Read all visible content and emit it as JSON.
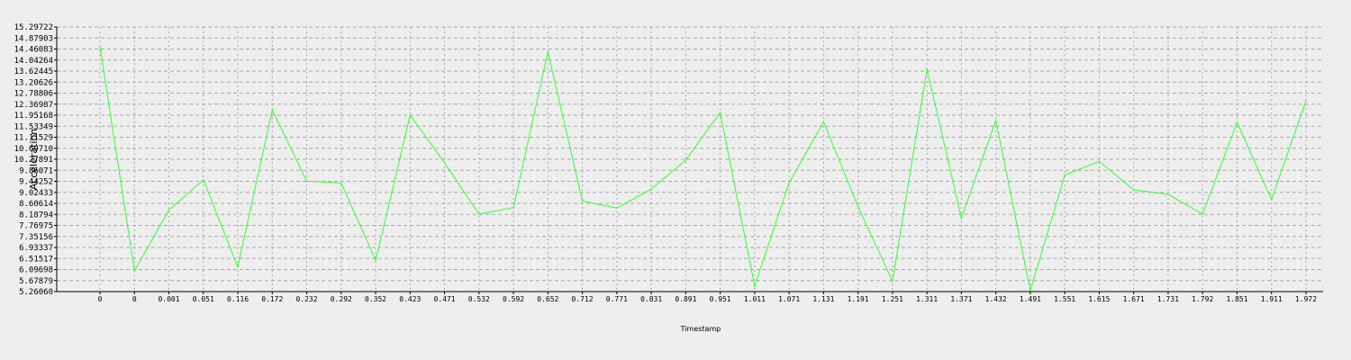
{
  "chart_data": {
    "type": "line",
    "title": "",
    "xlabel": "Timestamp",
    "ylabel": "Acceleration",
    "grid": true,
    "line_color": "#33ff33",
    "background_color": "#eeeeee",
    "grid_color": "#a8a8a8",
    "ylim": [
      5.2606,
      15.29722
    ],
    "y_ticks": [
      "5.26060",
      "5.67879",
      "6.09698",
      "6.51517",
      "6.93337",
      "7.35156",
      "7.76975",
      "8.18794",
      "8.60614",
      "9.02433",
      "9.44252",
      "9.86071",
      "10.27891",
      "10.69710",
      "11.11529",
      "11.53349",
      "11.95168",
      "12.36987",
      "12.78806",
      "13.20626",
      "13.62445",
      "14.04264",
      "14.46083",
      "14.87903",
      "15.29722"
    ],
    "categories": [
      "0",
      "0",
      "0.001",
      "0.051",
      "0.116",
      "0.172",
      "0.232",
      "0.292",
      "0.352",
      "0.423",
      "0.471",
      "0.532",
      "0.592",
      "0.652",
      "0.712",
      "0.771",
      "0.831",
      "0.891",
      "0.951",
      "1.011",
      "1.071",
      "1.131",
      "1.191",
      "1.251",
      "1.311",
      "1.371",
      "1.432",
      "1.491",
      "1.551",
      "1.615",
      "1.671",
      "1.731",
      "1.792",
      "1.851",
      "1.911",
      "1.972"
    ],
    "series": [
      {
        "values": [
          14.55,
          6.05,
          8.35,
          9.5,
          6.2,
          12.15,
          9.45,
          9.38,
          6.45,
          11.95,
          10.15,
          8.2,
          8.45,
          14.35,
          8.7,
          8.43,
          9.15,
          10.25,
          12.05,
          5.47,
          9.38,
          11.7,
          8.48,
          5.65,
          13.7,
          8.05,
          11.75,
          5.3,
          9.68,
          10.2,
          9.12,
          8.95,
          8.2,
          11.68,
          8.75,
          12.5
        ]
      }
    ]
  }
}
